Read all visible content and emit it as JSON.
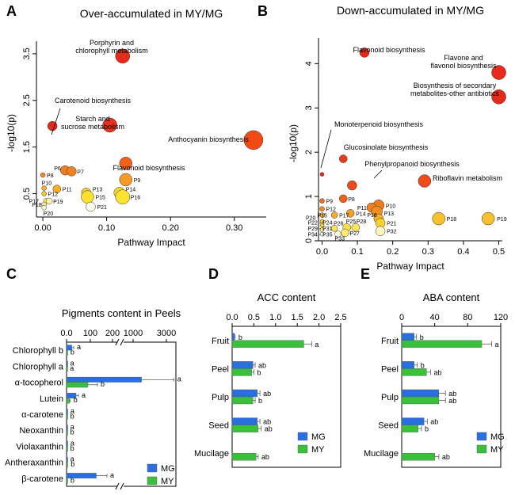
{
  "chart_data": [
    {
      "panel": "A",
      "type": "scatter",
      "title": "Over-accumulated in MY/MG",
      "xlabel": "Pathway Impact",
      "ylabel": "-log10(p)",
      "xlim": [
        -0.01,
        0.35
      ],
      "ylim": [
        0,
        3.6
      ],
      "xticks": [
        0.0,
        0.1,
        0.2,
        0.3
      ],
      "xticklabels": [
        "0.00",
        "0.10",
        "0.20",
        "0.30"
      ],
      "yticks": [
        0.5,
        1.5,
        2.5,
        3.5
      ],
      "yticklabels": [
        "0.5",
        "1.5",
        "2.5",
        "3.5"
      ],
      "points": [
        {
          "x": 0.125,
          "y": 3.45,
          "r": 9,
          "color": "#e8291c",
          "label": ""
        },
        {
          "x": 0.015,
          "y": 1.95,
          "r": 6,
          "color": "#e32a1b",
          "label": ""
        },
        {
          "x": 0.105,
          "y": 1.97,
          "r": 9,
          "color": "#e8301c",
          "label": ""
        },
        {
          "x": 0.33,
          "y": 1.65,
          "r": 12,
          "color": "#f04a14",
          "label": ""
        },
        {
          "x": 0.13,
          "y": 1.15,
          "r": 8,
          "color": "#f2601a",
          "label": ""
        },
        {
          "x": 0.035,
          "y": 1.0,
          "r": 6,
          "color": "#f07c20",
          "label": "P6"
        },
        {
          "x": 0.045,
          "y": 0.98,
          "r": 6,
          "color": "#f08020",
          "label": "P7"
        },
        {
          "x": 0.0,
          "y": 0.9,
          "r": 3,
          "color": "#f08a22",
          "label": "P8"
        },
        {
          "x": 0.13,
          "y": 0.8,
          "r": 8,
          "color": "#f59a24",
          "label": "P9"
        },
        {
          "x": 0.002,
          "y": 0.62,
          "r": 3,
          "color": "#f7b026",
          "label": "P10"
        },
        {
          "x": 0.022,
          "y": 0.6,
          "r": 5,
          "color": "#f7ae26",
          "label": "P11"
        },
        {
          "x": 0.002,
          "y": 0.5,
          "r": 3,
          "color": "#f9c82a",
          "label": "P12"
        },
        {
          "x": 0.068,
          "y": 0.52,
          "r": 6,
          "color": "#fad02c",
          "label": "P13"
        },
        {
          "x": 0.12,
          "y": 0.52,
          "r": 7,
          "color": "#fbd530",
          "label": "P14"
        },
        {
          "x": 0.07,
          "y": 0.43,
          "r": 8,
          "color": "#fbe030",
          "label": "P15"
        },
        {
          "x": 0.125,
          "y": 0.43,
          "r": 9,
          "color": "#fce232",
          "label": "P16"
        },
        {
          "x": 0.005,
          "y": 0.35,
          "r": 3,
          "color": "#fdea6a",
          "label": "P17"
        },
        {
          "x": 0.002,
          "y": 0.27,
          "r": 3,
          "color": "#fdeea0",
          "label": "P18"
        },
        {
          "x": 0.01,
          "y": 0.34,
          "r": 4,
          "color": "#fdf2b0",
          "label": "P19"
        },
        {
          "x": 0.002,
          "y": 0.2,
          "r": 3,
          "color": "#fdf6d0",
          "label": "P20"
        },
        {
          "x": 0.075,
          "y": 0.22,
          "r": 6,
          "color": "#fefae8",
          "label": "P21"
        }
      ],
      "annotations": [
        "Porphyrin and chlorophyll metabolism",
        "Carotenoid biosynthesis",
        "Starch and sucrose metabolism",
        "Anthocyanin biosynthesis",
        "Flavonoid biosynthesis"
      ]
    },
    {
      "panel": "B",
      "type": "scatter",
      "title": "Down-accumulated in MY/MG",
      "xlabel": "Pathway Impact",
      "ylabel": "-log10(p)",
      "xlim": [
        -0.01,
        0.51
      ],
      "ylim": [
        0,
        4.4
      ],
      "xticks": [
        0.0,
        0.1,
        0.2,
        0.3,
        0.4,
        0.5
      ],
      "xticklabels": [
        "0.0",
        "0.1",
        "0.2",
        "0.3",
        "0.4",
        "0.5"
      ],
      "yticks": [
        0,
        1,
        2,
        3,
        4
      ],
      "yticklabels": [
        "0",
        "1",
        "2",
        "3",
        "4"
      ],
      "points": [
        {
          "x": 0.12,
          "y": 4.25,
          "r": 6,
          "color": "#e32a1b",
          "label": ""
        },
        {
          "x": 0.5,
          "y": 3.8,
          "r": 9,
          "color": "#e8291c",
          "label": ""
        },
        {
          "x": 0.5,
          "y": 3.25,
          "r": 9,
          "color": "#e32a1b",
          "label": ""
        },
        {
          "x": 0.0,
          "y": 1.5,
          "r": 2.5,
          "color": "#e32a1b",
          "label": ""
        },
        {
          "x": 0.06,
          "y": 1.85,
          "r": 5,
          "color": "#e83a1c",
          "label": ""
        },
        {
          "x": 0.085,
          "y": 1.25,
          "r": 6,
          "color": "#ea4a1c",
          "label": ""
        },
        {
          "x": 0.29,
          "y": 1.35,
          "r": 8,
          "color": "#ee4a1a",
          "label": ""
        },
        {
          "x": 0.06,
          "y": 0.95,
          "r": 5,
          "color": "#f0601c",
          "label": "P8"
        },
        {
          "x": 0.0,
          "y": 0.9,
          "r": 3,
          "color": "#f07020",
          "label": "P9"
        },
        {
          "x": 0.16,
          "y": 0.8,
          "r": 7,
          "color": "#f07a20",
          "label": "P10"
        },
        {
          "x": 0.14,
          "y": 0.75,
          "r": 6,
          "color": "#f08020",
          "label": "P11"
        },
        {
          "x": 0.0,
          "y": 0.72,
          "r": 3,
          "color": "#f08a22",
          "label": "P12"
        },
        {
          "x": 0.155,
          "y": 0.66,
          "r": 7,
          "color": "#f08c22",
          "label": "P13"
        },
        {
          "x": 0.08,
          "y": 0.62,
          "r": 5,
          "color": "#f4a024",
          "label": "P14"
        },
        {
          "x": 0.0,
          "y": 0.58,
          "r": 3,
          "color": "#f6aa26",
          "label": "P15"
        },
        {
          "x": 0.16,
          "y": 0.5,
          "r": 6,
          "color": "#f7b428",
          "label": "P16"
        },
        {
          "x": 0.035,
          "y": 0.58,
          "r": 4,
          "color": "#f6ac26",
          "label": "P17"
        },
        {
          "x": 0.33,
          "y": 0.5,
          "r": 8,
          "color": "#f9c02a",
          "label": "P18"
        },
        {
          "x": 0.47,
          "y": 0.5,
          "r": 8,
          "color": "#fac02c",
          "label": "P19"
        },
        {
          "x": 0.0,
          "y": 0.44,
          "r": 2.5,
          "color": "#f9c82a",
          "label": "P20"
        },
        {
          "x": 0.165,
          "y": 0.4,
          "r": 6,
          "color": "#fbd230",
          "label": "P21"
        },
        {
          "x": 0.0,
          "y": 0.35,
          "r": 2.5,
          "color": "#fbd830",
          "label": "P22 - P24"
        },
        {
          "x": 0.07,
          "y": 0.3,
          "r": 5,
          "color": "#fbe040",
          "label": "P25"
        },
        {
          "x": 0.035,
          "y": 0.28,
          "r": 4,
          "color": "#fce450",
          "label": "P26"
        },
        {
          "x": 0.065,
          "y": 0.18,
          "r": 5,
          "color": "#fdea70",
          "label": "P27"
        },
        {
          "x": 0.095,
          "y": 0.3,
          "r": 5,
          "color": "#fde660",
          "label": "P28"
        },
        {
          "x": 0.0,
          "y": 0.25,
          "r": 2.5,
          "color": "#fdea80",
          "label": "P29 - P31"
        },
        {
          "x": 0.165,
          "y": 0.22,
          "r": 6,
          "color": "#fef4c0",
          "label": "P32"
        },
        {
          "x": 0.045,
          "y": 0.15,
          "r": 4,
          "color": "#fef8e0",
          "label": "P33"
        },
        {
          "x": 0.0,
          "y": 0.15,
          "r": 2.5,
          "color": "#fffdf4",
          "label": "P34 - P35"
        }
      ],
      "annotations": [
        "Flavonoid biosynthesis",
        "Flavone and flavonol biosynthesis",
        "Biosynthesis of secondary metabolites-other antibiotics",
        "Monoterpenoid biosynthesis",
        "Glucosinolate biosynthesis",
        "Phenylpropanoid biosynthesis",
        "Riboflavin metabolism"
      ]
    },
    {
      "panel": "C",
      "type": "bar",
      "orientation": "horizontal",
      "title": "Pigments content in Peels",
      "axis": "broken",
      "xticklabels": [
        "0.0",
        "100",
        "200",
        "1000",
        "3000"
      ],
      "categories": [
        "Chlorophyll b",
        "Chlorophyll a",
        "α-tocopherol",
        "Lutein",
        "α-carotene",
        "Neoxanthin",
        "Violaxanthin",
        "Antheraxanthin",
        "β-carotene"
      ],
      "series": [
        {
          "name": "MG",
          "color": "#2a6fe0",
          "values": [
            22,
            2,
            1100,
            40,
            3,
            2,
            3,
            2,
            125
          ],
          "errors": [
            8,
            0,
            1800,
            10,
            0,
            0,
            0,
            0,
            45
          ],
          "letters": [
            "a",
            "a",
            "a",
            "a",
            "a",
            "a",
            "a",
            "a",
            "a"
          ]
        },
        {
          "name": "MY",
          "color": "#3ac03a",
          "values": [
            3,
            1,
            90,
            12,
            2,
            2,
            2,
            4,
            3
          ],
          "errors": [
            0,
            0,
            40,
            4,
            0,
            0,
            0,
            0,
            0
          ],
          "letters": [
            "b",
            "a",
            "b",
            "b",
            "b",
            "b",
            "b",
            "b",
            "b"
          ]
        }
      ]
    },
    {
      "panel": "D",
      "type": "bar",
      "orientation": "horizontal",
      "title": "ACC content",
      "xlim": [
        0,
        2.5
      ],
      "xticks": [
        0,
        0.5,
        1,
        1.5,
        2,
        2.5
      ],
      "xticklabels": [
        "0.0",
        "0.5",
        "1.0",
        "1.5",
        "2.0",
        "2.5"
      ],
      "categories": [
        "Fruit",
        "Peel",
        "Pulp",
        "Seed",
        "Mucilage"
      ],
      "series": [
        {
          "name": "MG",
          "color": "#2a6fe0",
          "values": [
            0.05,
            0.48,
            0.58,
            0.58,
            null
          ],
          "errors": [
            0.02,
            0.05,
            0.06,
            0.06,
            null
          ],
          "letters": [
            "b",
            "ab",
            "ab",
            "ab",
            ""
          ]
        },
        {
          "name": "MY",
          "color": "#3ac03a",
          "values": [
            1.65,
            0.45,
            0.48,
            0.6,
            0.55
          ],
          "errors": [
            0.18,
            0.05,
            0.05,
            0.07,
            0.05
          ],
          "letters": [
            "a",
            "b",
            "b",
            "ab",
            "ab"
          ]
        }
      ]
    },
    {
      "panel": "E",
      "type": "bar",
      "orientation": "horizontal",
      "title": "ABA content",
      "xlim": [
        0,
        120
      ],
      "xticks": [
        0,
        40,
        80,
        120
      ],
      "xticklabels": [
        "0",
        "40",
        "80",
        "120"
      ],
      "categories": [
        "Fruit",
        "Peel",
        "Pulp",
        "Seed",
        "Mucilage"
      ],
      "series": [
        {
          "name": "MG",
          "color": "#2a6fe0",
          "values": [
            15,
            15,
            45,
            27,
            null
          ],
          "errors": [
            3,
            4,
            8,
            4,
            null
          ],
          "letters": [
            "b",
            "b",
            "ab",
            "ab",
            ""
          ]
        },
        {
          "name": "MY",
          "color": "#3ac03a",
          "values": [
            97,
            30,
            45,
            20,
            40
          ],
          "errors": [
            12,
            5,
            8,
            4,
            5
          ],
          "letters": [
            "a",
            "ab",
            "ab",
            "b",
            "ab"
          ]
        }
      ]
    }
  ],
  "labels": {
    "a_points": [
      "P6",
      "P7",
      "P8",
      "P9",
      "P10",
      "P11",
      "P12",
      "P13",
      "P14",
      "P15",
      "P16",
      "P17",
      "P18",
      "P19",
      "P20",
      "P21"
    ],
    "b_points": [
      "P8",
      "P9",
      "P10",
      "P11",
      "P12",
      "P13",
      "P14",
      "P15",
      "P16",
      "P17",
      "P18",
      "P19",
      "P20",
      "P21",
      "P22 - P24",
      "P25",
      "P26",
      "P27",
      "P28",
      "P29 - P31",
      "P32",
      "P33",
      "P34 - P35"
    ]
  }
}
